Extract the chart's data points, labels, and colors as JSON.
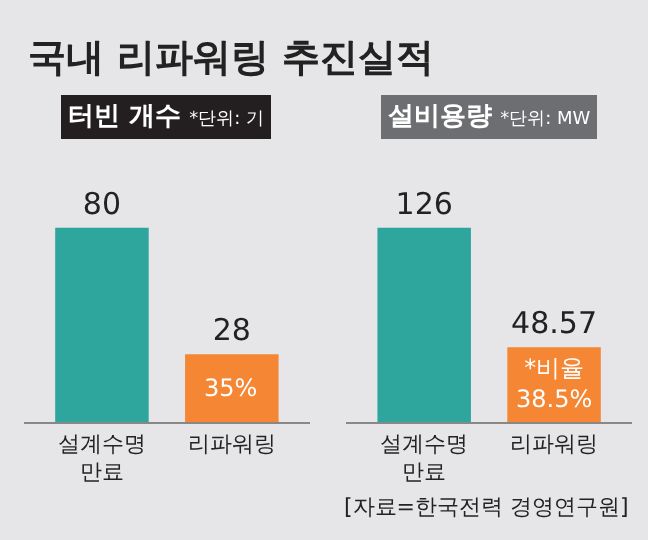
{
  "chart_data": [
    {
      "type": "bar",
      "title": "국내 리파워링 추진실적",
      "subtitle": "터빈 개수 *단위: 기",
      "categories": [
        "설계수명 만료",
        "리파워링"
      ],
      "values": [
        80,
        28
      ],
      "colors": [
        "#2ea59d",
        "#f58634"
      ],
      "data_labels": true,
      "annotations": [
        "35%"
      ]
    },
    {
      "type": "bar",
      "subtitle": "설비용량 *단위: MW",
      "categories": [
        "설계수명 만료",
        "리파워링"
      ],
      "values": [
        126,
        48.57
      ],
      "colors": [
        "#2ea59d",
        "#f58634"
      ],
      "data_labels": true,
      "annotations": [
        "*비율 38.5%",
        "[자료=한국전력 경영연구원]"
      ]
    }
  ]
}
